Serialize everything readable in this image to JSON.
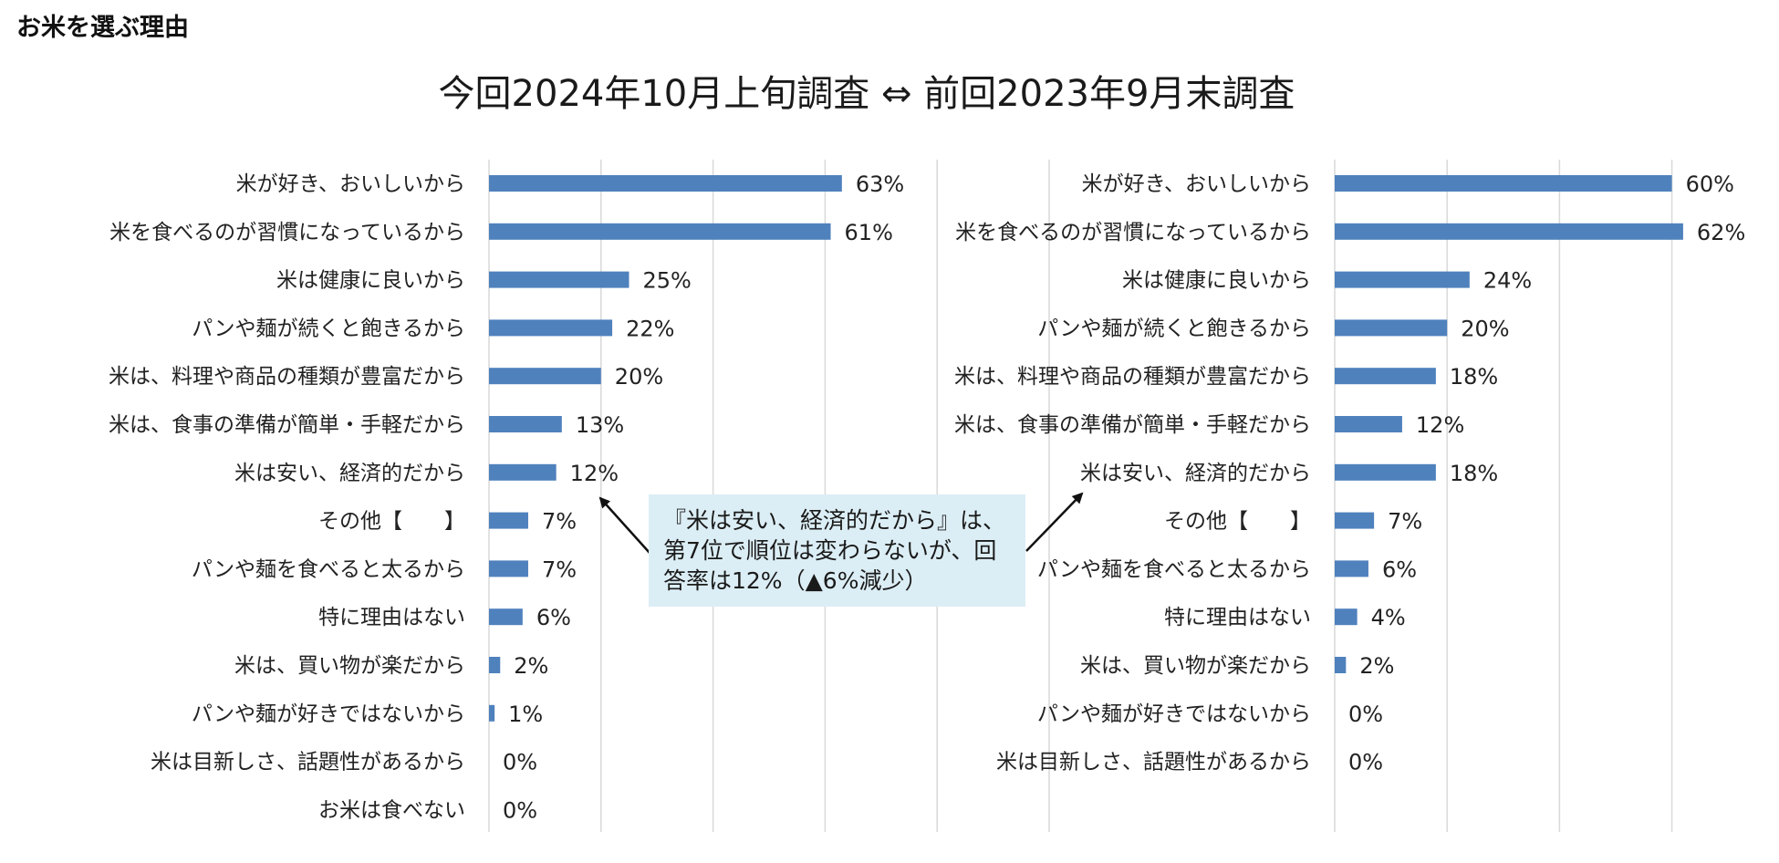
{
  "page": {
    "heading": "お米を選ぶ理由",
    "title": "今回2024年10月上旬調査 ⇔ 前回2023年9月末調査"
  },
  "callout": {
    "text": "『米は安い、経済的だから』は、第7位で順位は変わらないが、回答率は12%（▲6%減少）"
  },
  "colors": {
    "bar": "#4f81bd",
    "callout_bg": "#dceef5",
    "grid": "#d9d9d9"
  },
  "chart_data": [
    {
      "type": "bar",
      "orientation": "horizontal",
      "title": "今回2024年10月上旬調査",
      "xlim": [
        0,
        100
      ],
      "grid": true,
      "categories": [
        "米が好き、おいしいから",
        "米を食べるのが習慣になっているから",
        "米は健康に良いから",
        "パンや麺が続くと飽きるから",
        "米は、料理や商品の種類が豊富だから",
        "米は、食事の準備が簡単・手軽だから",
        "米は安い、経済的だから",
        "その他【　　】",
        "パンや麺を食べると太るから",
        "特に理由はない",
        "米は、買い物が楽だから",
        "パンや麺が好きではないから",
        "米は目新しさ、話題性があるから",
        "お米は食べない"
      ],
      "values": [
        63,
        61,
        25,
        22,
        20,
        13,
        12,
        7,
        7,
        6,
        2,
        1,
        0,
        0
      ],
      "labels": [
        "63%",
        "61%",
        "25%",
        "22%",
        "20%",
        "13%",
        "12%",
        "7%",
        "7%",
        "6%",
        "2%",
        "1%",
        "0%",
        "0%"
      ]
    },
    {
      "type": "bar",
      "orientation": "horizontal",
      "title": "前回2023年9月末調査",
      "xlim": [
        0,
        100
      ],
      "grid": true,
      "categories": [
        "米が好き、おいしいから",
        "米を食べるのが習慣になっているから",
        "米は健康に良いから",
        "パンや麺が続くと飽きるから",
        "米は、料理や商品の種類が豊富だから",
        "米は、食事の準備が簡単・手軽だから",
        "米は安い、経済的だから",
        "その他【　　】",
        "パンや麺を食べると太るから",
        "特に理由はない",
        "米は、買い物が楽だから",
        "パンや麺が好きではないから",
        "米は目新しさ、話題性があるから"
      ],
      "values": [
        60,
        62,
        24,
        20,
        18,
        12,
        18,
        7,
        6,
        4,
        2,
        0,
        0
      ],
      "labels": [
        "60%",
        "62%",
        "24%",
        "20%",
        "18%",
        "12%",
        "18%",
        "7%",
        "6%",
        "4%",
        "2%",
        "0%",
        "0%"
      ]
    }
  ]
}
